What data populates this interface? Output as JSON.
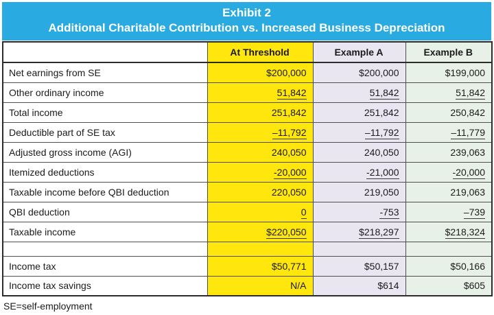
{
  "banner": {
    "line1": "Exhibit 2",
    "line2": "Additional Charitable Contribution vs. Increased Business Depreciation"
  },
  "colors": {
    "banner_blue": "#29ABE2",
    "threshold_yellow": "#FFE60C",
    "example_a_lavender": "#E9E6F2",
    "example_b_green": "#E8F1E8"
  },
  "table": {
    "columns": [
      "",
      "At Threshold",
      "Example A",
      "Example B"
    ],
    "rows": [
      {
        "label": "Net earnings from SE",
        "values": [
          "$200,000",
          "$200,000",
          "$199,000"
        ]
      },
      {
        "label": "Other ordinary income",
        "values": [
          "51,842",
          "51,842",
          "51,842"
        ]
      },
      {
        "label": "Total income",
        "values": [
          "251,842",
          "251,842",
          "250,842"
        ]
      },
      {
        "label": "Deductible part of SE tax",
        "values": [
          "–11,792",
          "–11,792",
          "–11,779"
        ]
      },
      {
        "label": "Adjusted gross income (AGI)",
        "values": [
          "240,050",
          "240,050",
          "239,063"
        ]
      },
      {
        "label": "Itemized deductions",
        "values": [
          "-20,000",
          "-21,000",
          "-20,000"
        ]
      },
      {
        "label": "Taxable income before QBI deduction",
        "values": [
          "220,050",
          "219,050",
          "219,063"
        ]
      },
      {
        "label": "QBI deduction",
        "values": [
          "0",
          "-753",
          "–739"
        ]
      },
      {
        "label": "Taxable income",
        "values": [
          "$220,050",
          "$218,297",
          "$218,324"
        ]
      },
      {
        "label": "",
        "values": [
          "",
          "",
          ""
        ]
      },
      {
        "label": "Income tax",
        "values": [
          "$50,771",
          "$50,157",
          "$50,166"
        ]
      },
      {
        "label": "Income tax savings",
        "values": [
          "N/A",
          "$614",
          "$605"
        ]
      }
    ]
  },
  "footnote": "SE=self-employment",
  "chart_data": {
    "type": "table",
    "title": "Exhibit 2 — Additional Charitable Contribution vs. Increased Business Depreciation",
    "columns": [
      "",
      "At Threshold",
      "Example A",
      "Example B"
    ],
    "rows": [
      [
        "Net earnings from SE",
        "$200,000",
        "$200,000",
        "$199,000"
      ],
      [
        "Other ordinary income",
        "51,842",
        "51,842",
        "51,842"
      ],
      [
        "Total income",
        "251,842",
        "251,842",
        "250,842"
      ],
      [
        "Deductible part of SE tax",
        "–11,792",
        "–11,792",
        "–11,779"
      ],
      [
        "Adjusted gross income (AGI)",
        "240,050",
        "240,050",
        "239,063"
      ],
      [
        "Itemized deductions",
        "-20,000",
        "-21,000",
        "-20,000"
      ],
      [
        "Taxable income before QBI deduction",
        "220,050",
        "219,050",
        "219,063"
      ],
      [
        "QBI deduction",
        "0",
        "-753",
        "–739"
      ],
      [
        "Taxable income",
        "$220,050",
        "$218,297",
        "$218,324"
      ],
      [
        "",
        "",
        "",
        ""
      ],
      [
        "Income tax",
        "$50,771",
        "$50,157",
        "$50,166"
      ],
      [
        "Income tax savings",
        "N/A",
        "$614",
        "$605"
      ]
    ],
    "footnote": "SE=self-employment",
    "layout_hints": {
      "underlined_value_rows": [
        1,
        3,
        5,
        7,
        8
      ],
      "column_backgrounds": [
        "white",
        "#FFE60C",
        "#E9E6F2",
        "#E8F1E8"
      ],
      "header_background": "#29ABE2"
    }
  }
}
